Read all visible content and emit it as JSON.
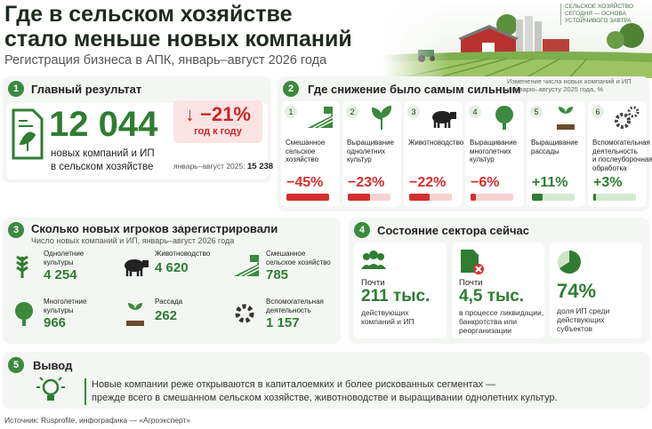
{
  "header": {
    "title_lines": [
      "Где в сельском хозяйстве",
      "стало меньше новых компаний"
    ],
    "subtitle": "Регистрация бизнеса в АПК, январь–август 2026 года",
    "brand_lines": [
      "СЕЛЬСКОЕ ХОЗЯЙСТВО",
      "СЕГОДНЯ — ОСНОВА",
      "УСТОЙЧИВОГО ЗАВТРА"
    ]
  },
  "main_result": {
    "number": "1",
    "title": "Главный результат",
    "value": "12 044",
    "caption_lines": [
      "новых компаний и ИП",
      "в сельском хозяйстве"
    ],
    "change": "↓ −21%",
    "change_caption": "год к году",
    "prev_label": "январь–август 2025:",
    "prev_value": "15 238"
  },
  "decline": {
    "number": "2",
    "title": "Где снижение было самым сильным",
    "note_lines": [
      "Изменение числа новых компаний и ИП",
      "к январю–августу 2025 года, %"
    ],
    "items": [
      {
        "rank": "1",
        "label_lines": [
          "Смешанное",
          "сельское",
          "хозяйство"
        ],
        "value": -45,
        "value_label": "−45%"
      },
      {
        "rank": "2",
        "label_lines": [
          "Выращивание",
          "однолетних",
          "культур"
        ],
        "value": -23,
        "value_label": "−23%"
      },
      {
        "rank": "3",
        "label_lines": [
          "Животноводство"
        ],
        "value": -22,
        "value_label": "−22%"
      },
      {
        "rank": "4",
        "label_lines": [
          "Выращивание",
          "многолетних",
          "культур"
        ],
        "value": -6,
        "value_label": "−6%"
      },
      {
        "rank": "5",
        "label_lines": [
          "Выращивание",
          "рассады"
        ],
        "value": 11,
        "value_label": "+11%"
      },
      {
        "rank": "6",
        "label_lines": [
          "Вспомогательная",
          "деятельность",
          "и послеуборочная",
          "обработка"
        ],
        "value": 3,
        "value_label": "+3%"
      }
    ]
  },
  "players": {
    "number": "3",
    "title": "Сколько новых игроков зарегистрировали",
    "subtitle": "Число новых компаний и ИП, январь–август 2026 года",
    "items": [
      {
        "label_lines": [
          "Однолетние",
          "культуры"
        ],
        "value": "4 254"
      },
      {
        "label_lines": [
          "Животноводство"
        ],
        "value": "4 620"
      },
      {
        "label_lines": [
          "Смешанное",
          "сельское хозяйство"
        ],
        "value": "785"
      },
      {
        "label_lines": [
          "Многолетние",
          "культуры"
        ],
        "value": "966"
      },
      {
        "label_lines": [
          "Рассада"
        ],
        "value": "262"
      },
      {
        "label_lines": [
          "Вспомогательная",
          "деятельность"
        ],
        "value": "1 157"
      }
    ]
  },
  "state": {
    "number": "4",
    "title": "Состояние сектора сейчас",
    "items": [
      {
        "prefix": "Почти",
        "value": "211 тыс.",
        "caption_lines": [
          "действующих",
          "компаний и ИП"
        ]
      },
      {
        "prefix": "Почти",
        "value": "4,5 тыс.",
        "caption_lines": [
          "в процессе ликвидации,",
          "банкротства или",
          "реорганизации"
        ]
      },
      {
        "value": "74%",
        "caption_lines": [
          "доля ИП среди",
          "действующих",
          "субъектов"
        ]
      }
    ]
  },
  "conclusion": {
    "number": "5",
    "title": "Вывод",
    "text_lines": [
      "Новые компании реже открываются в капиталоемких и более рискованных сегментах —",
      "прежде всего в смешанном сельском хозяйстве, животноводстве и выращивании однолетних культур."
    ]
  },
  "source": "Источник: Rusprofile, инфографика — «Агроэксперт»"
}
